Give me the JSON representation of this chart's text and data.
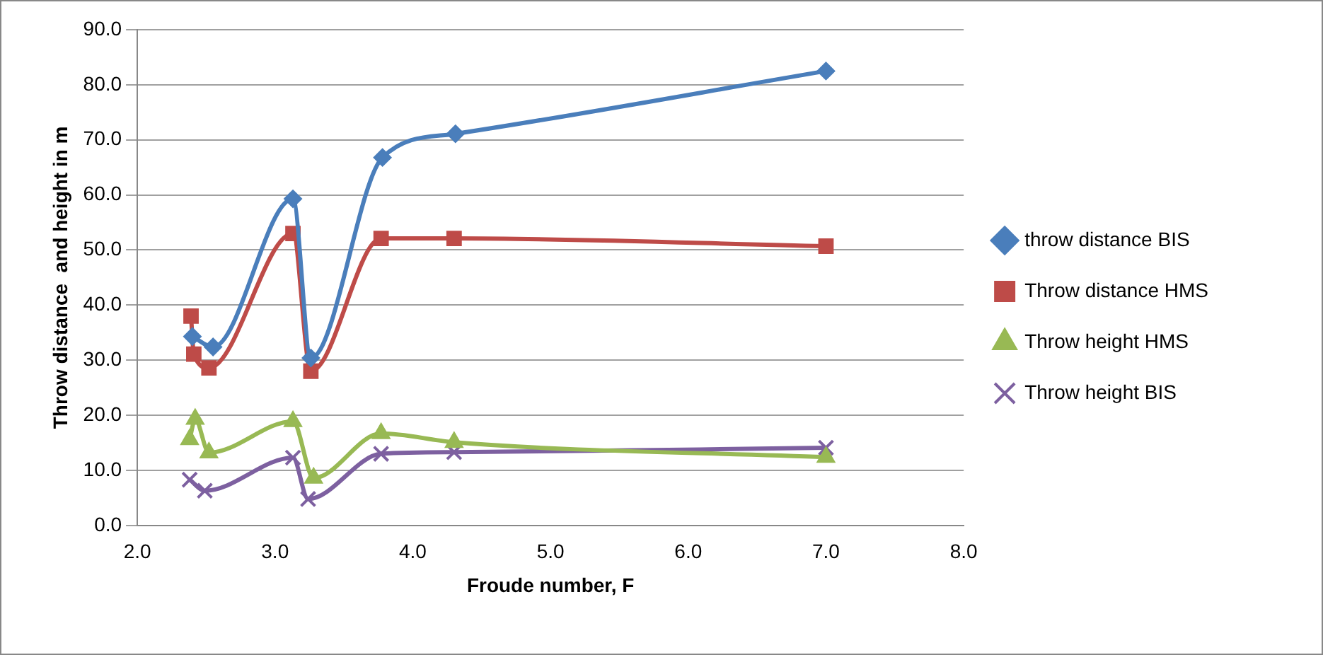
{
  "chart_data": {
    "type": "line",
    "xlabel": "Froude number, F",
    "ylabel": "Throw distance  and height in m",
    "xlim": [
      2.0,
      8.0
    ],
    "xticks": [
      {
        "value": 2,
        "label": "2.0"
      },
      {
        "value": 3,
        "label": "3.0"
      },
      {
        "value": 4,
        "label": "4.0"
      },
      {
        "value": 5,
        "label": "5.0"
      },
      {
        "value": 6,
        "label": "6.0"
      },
      {
        "value": 7,
        "label": "7.0"
      },
      {
        "value": 8,
        "label": "8.0"
      }
    ],
    "ylim": [
      0,
      90
    ],
    "yticks": [
      {
        "value": 0,
        "label": "0.0"
      },
      {
        "value": 10,
        "label": "10.0"
      },
      {
        "value": 20,
        "label": "20.0"
      },
      {
        "value": 30,
        "label": "30.0"
      },
      {
        "value": 40,
        "label": "40.0"
      },
      {
        "value": 50,
        "label": "50.0"
      },
      {
        "value": 60,
        "label": "60.0"
      },
      {
        "value": 70,
        "label": "70.0"
      },
      {
        "value": 80,
        "label": "80.0"
      },
      {
        "value": 90,
        "label": "90.0"
      }
    ],
    "grid": "y",
    "legend": "right",
    "series": [
      {
        "name": "throw distance BIS",
        "color": "#4a7ebb",
        "marker": "diamond",
        "x": [
          2.4,
          2.55,
          3.13,
          3.26,
          3.78,
          4.31,
          7.0
        ],
        "values": [
          34.3,
          32.4,
          59.3,
          30.4,
          66.8,
          71.1,
          82.5
        ]
      },
      {
        "name": "Throw distance HMS",
        "color": "#be4b48",
        "marker": "square",
        "x": [
          2.39,
          2.41,
          2.52,
          3.13,
          3.26,
          3.77,
          4.3,
          7.0
        ],
        "values": [
          38.0,
          31.1,
          28.6,
          53.0,
          28.0,
          52.1,
          52.1,
          50.7
        ]
      },
      {
        "name": "Throw height HMS",
        "color": "#98b954",
        "marker": "triangle",
        "x": [
          2.38,
          2.42,
          2.52,
          3.13,
          3.28,
          3.77,
          4.3,
          7.0
        ],
        "values": [
          15.6,
          19.3,
          13.2,
          18.9,
          8.6,
          16.7,
          15.1,
          12.4
        ]
      },
      {
        "name": "Throw height BIS",
        "color": "#7d60a0",
        "marker": "cross",
        "x": [
          2.38,
          2.49,
          3.13,
          3.24,
          3.77,
          4.3,
          7.0
        ],
        "values": [
          8.3,
          6.3,
          12.3,
          4.8,
          13.0,
          13.3,
          14.1
        ]
      }
    ]
  }
}
